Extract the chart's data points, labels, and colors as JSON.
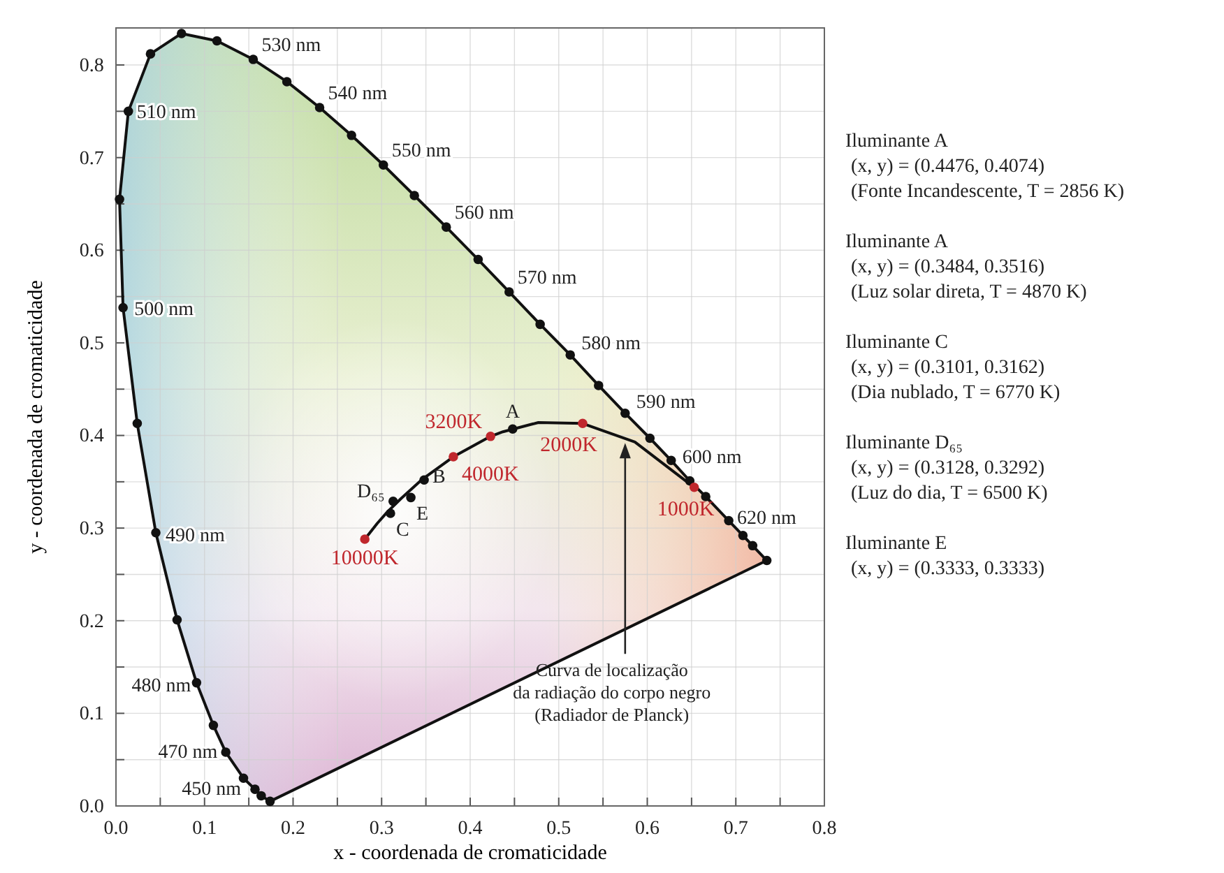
{
  "chart_data": {
    "type": "line",
    "xlabel": "x - coordenada de cromaticidade",
    "ylabel": "y - coordenada de cromaticidade",
    "xlim": [
      0,
      0.8
    ],
    "ylim": [
      0,
      0.84
    ],
    "xticks": [
      {
        "value": 0,
        "label": "0.0"
      },
      {
        "value": 0.05,
        "label": null
      },
      0.1,
      {
        "value": 0.15,
        "label": null
      },
      0.2,
      {
        "value": 0.25,
        "label": null
      },
      0.3,
      {
        "value": 0.35,
        "label": null
      },
      0.4,
      {
        "value": 0.45,
        "label": null
      },
      0.5,
      {
        "value": 0.55,
        "label": null
      },
      0.6,
      {
        "value": 0.65,
        "label": null
      },
      0.7,
      {
        "value": 0.75,
        "label": null
      },
      0.8
    ],
    "yticks": [
      {
        "value": 0,
        "label": "0.0"
      },
      {
        "value": 0.05,
        "label": null
      },
      0.1,
      {
        "value": 0.15,
        "label": null
      },
      0.2,
      {
        "value": 0.25,
        "label": null
      },
      0.3,
      {
        "value": 0.35,
        "label": null
      },
      0.4,
      {
        "value": 0.45,
        "label": null
      },
      0.5,
      {
        "value": 0.55,
        "label": null
      },
      0.6,
      {
        "value": 0.65,
        "label": null
      },
      0.7,
      {
        "value": 0.75,
        "label": null
      },
      0.8
    ],
    "grid": true,
    "series": [
      {
        "type": "line",
        "marker": "circle",
        "color": "#111111",
        "x": [
          0.174,
          0.164,
          0.157,
          0.144,
          0.124,
          0.11,
          0.091,
          0.069,
          0.045,
          0.024,
          0.008,
          0.004,
          0.014,
          0.039,
          0.074,
          0.114,
          0.155,
          0.193,
          0.23,
          0.266,
          0.302,
          0.337,
          0.373,
          0.409,
          0.444,
          0.479,
          0.513,
          0.545,
          0.575,
          0.603,
          0.627,
          0.648,
          0.666,
          0.692,
          0.708,
          0.719,
          0.735
        ],
        "values": [
          0.005,
          0.011,
          0.018,
          0.03,
          0.058,
          0.087,
          0.133,
          0.201,
          0.295,
          0.413,
          0.538,
          0.655,
          0.75,
          0.812,
          0.834,
          0.826,
          0.806,
          0.782,
          0.754,
          0.724,
          0.692,
          0.659,
          0.625,
          0.59,
          0.555,
          0.52,
          0.487,
          0.454,
          0.424,
          0.397,
          0.373,
          0.351,
          0.334,
          0.308,
          0.292,
          0.281,
          0.265
        ]
      },
      {
        "type": "line",
        "marker": "none",
        "color": "#111111",
        "x": [
          0.174,
          0.735
        ],
        "values": [
          0.005,
          0.265
        ]
      },
      {
        "type": "line",
        "marker": "none",
        "color": "#111111",
        "x": [
          0.281,
          0.295,
          0.306,
          0.322,
          0.345,
          0.381,
          0.423,
          0.437,
          0.477,
          0.527,
          0.586,
          0.653
        ],
        "values": [
          0.288,
          0.305,
          0.317,
          0.332,
          0.352,
          0.377,
          0.399,
          0.404,
          0.414,
          0.413,
          0.393,
          0.344
        ]
      },
      {
        "type": "scatter",
        "marker": "circle",
        "color": "#c0272d",
        "x": [
          0.281,
          0.381,
          0.423,
          0.527,
          0.653
        ],
        "values": [
          0.288,
          0.377,
          0.399,
          0.413,
          0.344
        ]
      },
      {
        "type": "scatter",
        "marker": "circle",
        "color": "#111111",
        "x": [
          0.448,
          0.348,
          0.31,
          0.313,
          0.333
        ],
        "values": [
          0.407,
          0.352,
          0.316,
          0.329,
          0.333
        ]
      }
    ],
    "annotations": [
      {
        "text": "530 nm",
        "x": 0.155,
        "y": 0.806
      },
      {
        "text": "540 nm",
        "x": 0.23,
        "y": 0.754
      },
      {
        "text": "550 nm",
        "x": 0.302,
        "y": 0.692
      },
      {
        "text": "560 nm",
        "x": 0.373,
        "y": 0.625
      },
      {
        "text": "570 nm",
        "x": 0.444,
        "y": 0.555
      },
      {
        "text": "580 nm",
        "x": 0.513,
        "y": 0.487
      },
      {
        "text": "590 nm",
        "x": 0.575,
        "y": 0.424
      },
      {
        "text": "600 nm",
        "x": 0.627,
        "y": 0.373
      },
      {
        "text": "620 nm",
        "x": 0.692,
        "y": 0.308
      },
      {
        "text": "510 nm",
        "x": 0.014,
        "y": 0.75
      },
      {
        "text": "500 nm",
        "x": 0.008,
        "y": 0.538
      },
      {
        "text": "490 nm",
        "x": 0.045,
        "y": 0.295
      },
      {
        "text": "480 nm",
        "x": 0.091,
        "y": 0.133
      },
      {
        "text": "470 nm",
        "x": 0.124,
        "y": 0.058
      },
      {
        "text": "450 nm",
        "x": 0.157,
        "y": 0.018
      },
      {
        "text": "10000K",
        "x": 0.281,
        "y": 0.288
      },
      {
        "text": "4000K",
        "x": 0.381,
        "y": 0.377
      },
      {
        "text": "3200K",
        "x": 0.423,
        "y": 0.399
      },
      {
        "text": "2000K",
        "x": 0.527,
        "y": 0.413
      },
      {
        "text": "1000K",
        "x": 0.653,
        "y": 0.344
      },
      {
        "text": "A",
        "x": 0.448,
        "y": 0.407
      },
      {
        "text": "B",
        "x": 0.348,
        "y": 0.352
      },
      {
        "text": "C",
        "x": 0.31,
        "y": 0.316
      },
      {
        "text": "D₆₅",
        "x": 0.313,
        "y": 0.329
      },
      {
        "text": "E",
        "x": 0.333,
        "y": 0.333
      },
      "Curva de localização\nda radiação do corpo negro\n(Radiador de Planck)",
      "Iluminante A\n(x, y) = (0.4476, 0.4074)\n(Fonte Incandescente, T = 2856 K)",
      "Iluminante A\n(x, y) = (0.3484, 0.3516)\n(Luz solar direta, T = 4870 K)",
      "Iluminante C\n(x, y) = (0.3101, 0.3162)\n(Dia nublado, T = 6770 K)",
      "Iluminante D₆₅\n(x, y) = (0.3128, 0.3292)\n(Luz do dia, T = 6500 K)",
      "Iluminante E\n(x, y) = (0.3333, 0.3333)"
    ]
  }
}
